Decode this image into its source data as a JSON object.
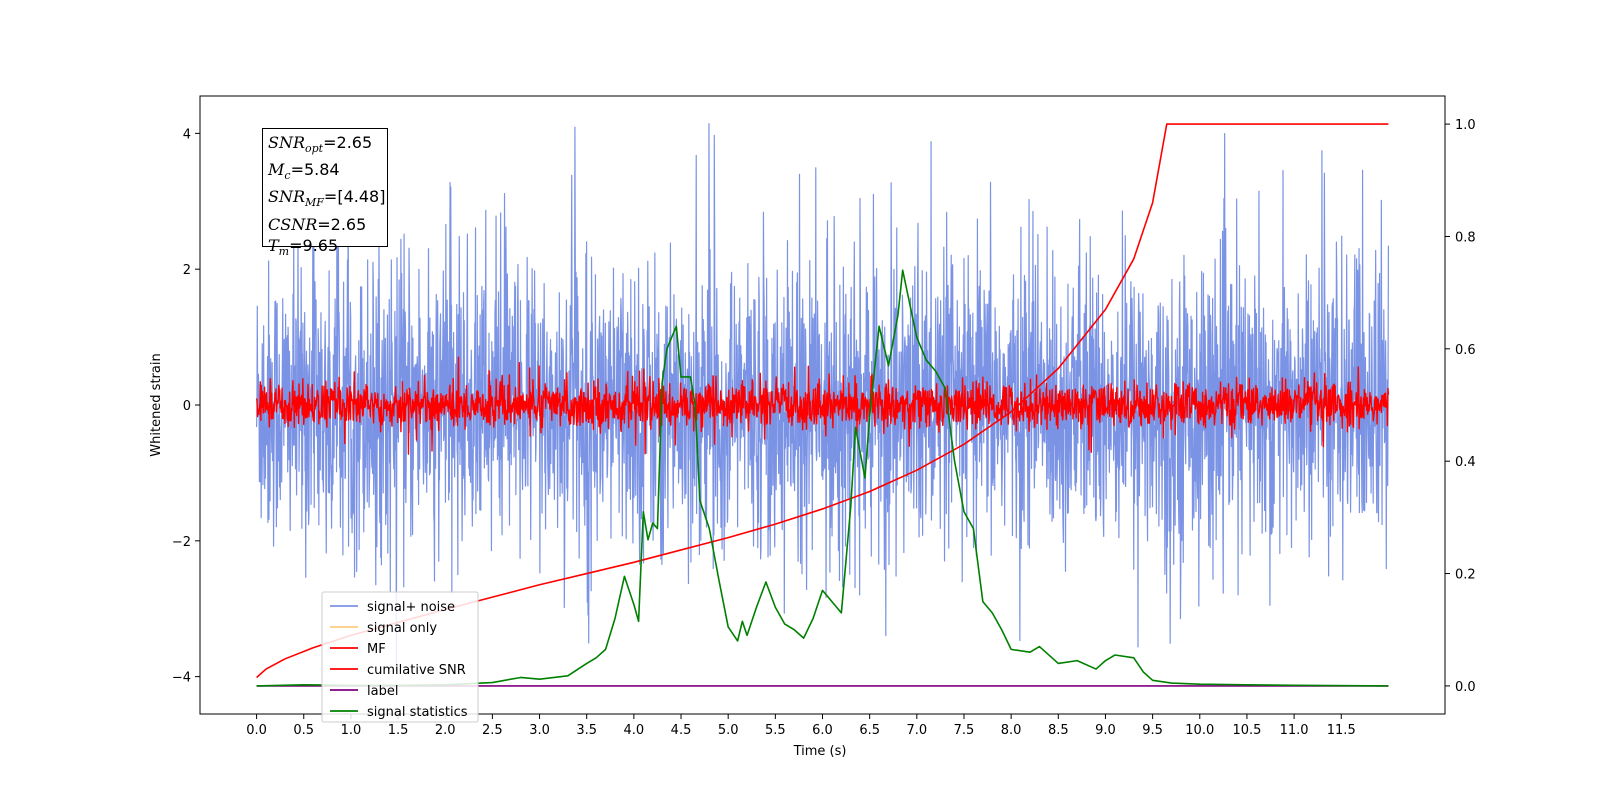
{
  "chart_data": {
    "type": "line",
    "xlabel": "Time (s)",
    "ylabel": "Whitened strain",
    "ylabel_right": "",
    "xlim": [
      -0.6,
      12.6
    ],
    "ylim": [
      -4.55,
      4.55
    ],
    "ylim_right": [
      -0.05,
      1.05
    ],
    "xticks": [
      "0.0",
      "0.5",
      "1.0",
      "1.5",
      "2.0",
      "2.5",
      "3.0",
      "3.5",
      "4.0",
      "4.5",
      "5.0",
      "5.5",
      "6.0",
      "6.5",
      "7.0",
      "7.5",
      "8.0",
      "8.5",
      "9.0",
      "9.5",
      "10.0",
      "10.5",
      "11.0",
      "11.5"
    ],
    "yticks_left": [
      "4",
      "2",
      "0",
      "−2",
      "−4"
    ],
    "yticks_right": [
      "1.0",
      "0.8",
      "0.6",
      "0.4",
      "0.2",
      "0.0"
    ],
    "grid": false,
    "legend_position": "lower-left",
    "annotation": {
      "snr_opt": "2.65",
      "mc": "5.84",
      "snr_mf": "[4.48]",
      "csnr": "2.65",
      "tm": "9.65"
    },
    "series": [
      {
        "name": "signal+ noise",
        "color": "#7b93e5",
        "axis": "left",
        "style": "noise",
        "amplitude_typical": 1.9,
        "peak_max": 4.15,
        "peak_min": -3.9,
        "x_range": [
          0.0,
          12.0
        ]
      },
      {
        "name": "signal only",
        "color": "#ffcc80",
        "axis": "left",
        "x": [],
        "y": []
      },
      {
        "name": "MF",
        "color": "#ff0000",
        "axis": "left",
        "style": "noise",
        "amplitude_typical": 0.3,
        "peak_max": 0.75,
        "x_range": [
          0.0,
          12.0
        ]
      },
      {
        "name": "cumilative SNR",
        "color": "#ff0000",
        "axis": "right",
        "x": [
          0.0,
          0.1,
          0.3,
          0.6,
          1.0,
          1.5,
          2.0,
          2.5,
          3.0,
          3.5,
          4.0,
          4.5,
          5.0,
          5.5,
          6.0,
          6.5,
          7.0,
          7.5,
          8.0,
          8.5,
          9.0,
          9.3,
          9.5,
          9.65,
          10.0,
          11.0,
          12.0
        ],
        "y": [
          0.015,
          0.03,
          0.048,
          0.068,
          0.09,
          0.113,
          0.136,
          0.158,
          0.18,
          0.2,
          0.22,
          0.242,
          0.264,
          0.288,
          0.315,
          0.346,
          0.384,
          0.43,
          0.488,
          0.565,
          0.67,
          0.76,
          0.86,
          1.0,
          1.0,
          1.0,
          1.0
        ]
      },
      {
        "name": "label",
        "color": "#800080",
        "axis": "right",
        "x": [
          0.0,
          12.0
        ],
        "y": [
          0.0,
          0.0
        ]
      },
      {
        "name": "signal statistics",
        "color": "#008000",
        "axis": "right",
        "x": [
          0.0,
          0.5,
          1.0,
          1.5,
          2.0,
          2.5,
          2.8,
          3.0,
          3.3,
          3.5,
          3.6,
          3.7,
          3.8,
          3.9,
          4.0,
          4.05,
          4.1,
          4.15,
          4.2,
          4.25,
          4.3,
          4.35,
          4.45,
          4.5,
          4.6,
          4.65,
          4.7,
          4.8,
          4.9,
          5.0,
          5.1,
          5.15,
          5.2,
          5.3,
          5.4,
          5.5,
          5.6,
          5.7,
          5.8,
          5.9,
          6.0,
          6.1,
          6.2,
          6.3,
          6.35,
          6.45,
          6.5,
          6.6,
          6.7,
          6.8,
          6.85,
          6.9,
          7.0,
          7.1,
          7.2,
          7.3,
          7.4,
          7.5,
          7.6,
          7.7,
          7.8,
          7.9,
          8.0,
          8.2,
          8.3,
          8.5,
          8.7,
          8.9,
          9.0,
          9.1,
          9.3,
          9.4,
          9.5,
          9.7,
          10.0,
          10.5,
          11.0,
          12.0
        ],
        "y": [
          0.0,
          0.002,
          0.001,
          0.001,
          0.002,
          0.006,
          0.015,
          0.012,
          0.018,
          0.04,
          0.05,
          0.065,
          0.12,
          0.195,
          0.145,
          0.115,
          0.31,
          0.26,
          0.29,
          0.28,
          0.54,
          0.6,
          0.64,
          0.55,
          0.55,
          0.5,
          0.33,
          0.28,
          0.19,
          0.105,
          0.08,
          0.115,
          0.09,
          0.14,
          0.185,
          0.14,
          0.11,
          0.1,
          0.085,
          0.12,
          0.17,
          0.15,
          0.13,
          0.32,
          0.46,
          0.37,
          0.48,
          0.64,
          0.57,
          0.66,
          0.74,
          0.7,
          0.62,
          0.58,
          0.56,
          0.53,
          0.4,
          0.31,
          0.28,
          0.15,
          0.13,
          0.1,
          0.065,
          0.06,
          0.07,
          0.04,
          0.045,
          0.03,
          0.045,
          0.055,
          0.05,
          0.025,
          0.01,
          0.005,
          0.003,
          0.002,
          0.001,
          0.0
        ]
      }
    ]
  }
}
